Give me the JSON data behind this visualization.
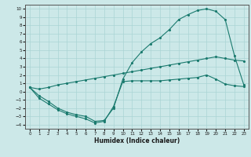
{
  "xlabel": "Humidex (Indice chaleur)",
  "xlim": [
    -0.5,
    23.5
  ],
  "ylim": [
    -4.5,
    10.5
  ],
  "xticks": [
    0,
    1,
    2,
    3,
    4,
    5,
    6,
    7,
    8,
    9,
    10,
    11,
    12,
    13,
    14,
    15,
    16,
    17,
    18,
    19,
    20,
    21,
    22,
    23
  ],
  "yticks": [
    -4,
    -3,
    -2,
    -1,
    0,
    1,
    2,
    3,
    4,
    5,
    6,
    7,
    8,
    9,
    10
  ],
  "color": "#1a7a6e",
  "bg_color": "#cce8e8",
  "grid_color": "#aad4d4",
  "line1_x": [
    0,
    1,
    2,
    3,
    4,
    5,
    6,
    7,
    8,
    9,
    10,
    11,
    12,
    13,
    14,
    15,
    16,
    17,
    18,
    19,
    20,
    21,
    22,
    23
  ],
  "line1_y": [
    0.5,
    0.3,
    0.5,
    0.8,
    1.0,
    1.2,
    1.4,
    1.6,
    1.8,
    2.0,
    2.2,
    2.4,
    2.6,
    2.8,
    3.0,
    3.2,
    3.4,
    3.6,
    3.8,
    4.0,
    4.2,
    4.0,
    3.8,
    3.7
  ],
  "line2_x": [
    0,
    1,
    2,
    3,
    4,
    5,
    6,
    7,
    8,
    9,
    10,
    11,
    12,
    13,
    14,
    15,
    16,
    17,
    18,
    19,
    20,
    21,
    22,
    23
  ],
  "line2_y": [
    0.5,
    -0.5,
    -1.2,
    -2.0,
    -2.5,
    -2.8,
    -3.0,
    -3.6,
    -3.5,
    -2.0,
    1.5,
    3.5,
    4.8,
    5.8,
    6.5,
    7.5,
    8.7,
    9.3,
    9.8,
    10.0,
    9.7,
    8.7,
    4.3,
    0.8
  ],
  "line3_x": [
    0,
    1,
    2,
    3,
    4,
    5,
    6,
    7,
    8,
    9,
    10,
    11,
    12,
    13,
    14,
    15,
    16,
    17,
    18,
    19,
    20,
    21,
    22,
    23
  ],
  "line3_y": [
    0.5,
    -0.8,
    -1.5,
    -2.2,
    -2.7,
    -3.0,
    -3.3,
    -3.8,
    -3.6,
    -1.8,
    1.2,
    1.3,
    1.3,
    1.3,
    1.3,
    1.4,
    1.5,
    1.6,
    1.7,
    2.0,
    1.5,
    0.9,
    0.7,
    0.6
  ]
}
